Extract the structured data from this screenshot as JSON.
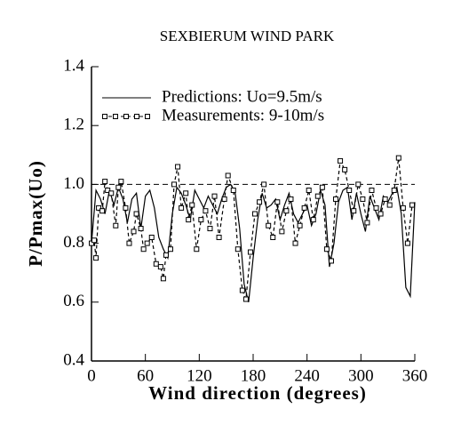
{
  "chart_data": {
    "type": "line",
    "title": "SEXBIERUM WIND PARK",
    "xlabel": "Wind direction (degrees)",
    "ylabel": "P/Pmax(Uo)",
    "xlim": [
      0,
      360
    ],
    "xticks": [
      0,
      60,
      120,
      180,
      240,
      300,
      360
    ],
    "ylim": [
      0.4,
      1.4
    ],
    "yticks": [
      0.4,
      0.6,
      0.8,
      {
        "value": 1,
        "label": "1.0"
      },
      1.2,
      1.4
    ],
    "hline": 1,
    "series": [
      {
        "name": "Predictions: Uo=9.5m/s",
        "color": "#000000",
        "style": "solid",
        "x": [
          0,
          5,
          10,
          15,
          20,
          25,
          30,
          35,
          40,
          45,
          50,
          55,
          60,
          65,
          70,
          75,
          80,
          85,
          90,
          95,
          100,
          105,
          110,
          115,
          120,
          125,
          130,
          135,
          140,
          145,
          150,
          155,
          160,
          165,
          170,
          175,
          180,
          185,
          190,
          195,
          200,
          205,
          210,
          215,
          220,
          225,
          230,
          235,
          240,
          245,
          250,
          255,
          260,
          265,
          270,
          275,
          280,
          285,
          290,
          295,
          300,
          305,
          310,
          315,
          320,
          325,
          330,
          335,
          340,
          345,
          350,
          355,
          360
        ],
        "values": [
          0.8,
          0.98,
          0.95,
          0.9,
          0.98,
          0.93,
          0.99,
          0.95,
          0.87,
          0.95,
          0.97,
          0.85,
          0.96,
          0.98,
          0.92,
          0.82,
          0.78,
          0.75,
          0.9,
          0.99,
          0.97,
          0.93,
          0.88,
          0.98,
          0.95,
          0.92,
          0.96,
          0.93,
          0.9,
          0.95,
          0.99,
          1.0,
          0.97,
          0.85,
          0.66,
          0.6,
          0.75,
          0.88,
          0.97,
          0.92,
          0.93,
          0.95,
          0.88,
          0.93,
          0.97,
          0.9,
          0.87,
          0.9,
          0.93,
          0.86,
          0.9,
          0.98,
          0.93,
          0.72,
          0.8,
          0.94,
          0.98,
          0.99,
          0.88,
          0.97,
          0.9,
          0.84,
          0.96,
          0.92,
          0.88,
          0.96,
          0.94,
          0.97,
          0.99,
          0.9,
          0.65,
          0.62,
          0.94
        ]
      },
      {
        "name": "Measurements: 9-10m/s",
        "color": "#000000",
        "style": "dashed-markers",
        "x": [
          0,
          3,
          5,
          8,
          12,
          15,
          18,
          22,
          27,
          30,
          33,
          38,
          42,
          47,
          50,
          55,
          58,
          62,
          67,
          72,
          77,
          80,
          83,
          88,
          92,
          96,
          100,
          105,
          108,
          112,
          117,
          122,
          127,
          132,
          137,
          142,
          148,
          152,
          158,
          163,
          168,
          172,
          177,
          182,
          187,
          192,
          197,
          202,
          207,
          212,
          217,
          222,
          227,
          232,
          237,
          242,
          247,
          252,
          257,
          262,
          267,
          272,
          277,
          282,
          287,
          292,
          297,
          302,
          307,
          312,
          317,
          322,
          327,
          332,
          337,
          342,
          347,
          352,
          357
        ],
        "values": [
          0.8,
          0.81,
          0.75,
          0.92,
          0.91,
          1.01,
          0.98,
          0.97,
          0.86,
          0.99,
          1.01,
          0.92,
          0.8,
          0.84,
          0.9,
          0.85,
          0.78,
          0.8,
          0.82,
          0.73,
          0.72,
          0.68,
          0.76,
          0.78,
          1.0,
          1.06,
          0.92,
          0.97,
          0.88,
          0.93,
          0.78,
          0.88,
          0.91,
          0.85,
          0.96,
          0.82,
          0.95,
          1.03,
          0.98,
          0.78,
          0.64,
          0.61,
          0.77,
          0.9,
          0.94,
          1.0,
          0.86,
          0.82,
          0.94,
          0.84,
          0.91,
          0.95,
          0.8,
          0.86,
          0.92,
          0.98,
          0.88,
          0.96,
          0.99,
          0.78,
          0.74,
          0.95,
          1.08,
          1.05,
          0.98,
          0.91,
          1.0,
          0.95,
          0.87,
          0.98,
          0.92,
          0.9,
          0.95,
          0.93,
          0.98,
          1.09,
          0.92,
          0.8,
          0.93
        ]
      }
    ]
  }
}
